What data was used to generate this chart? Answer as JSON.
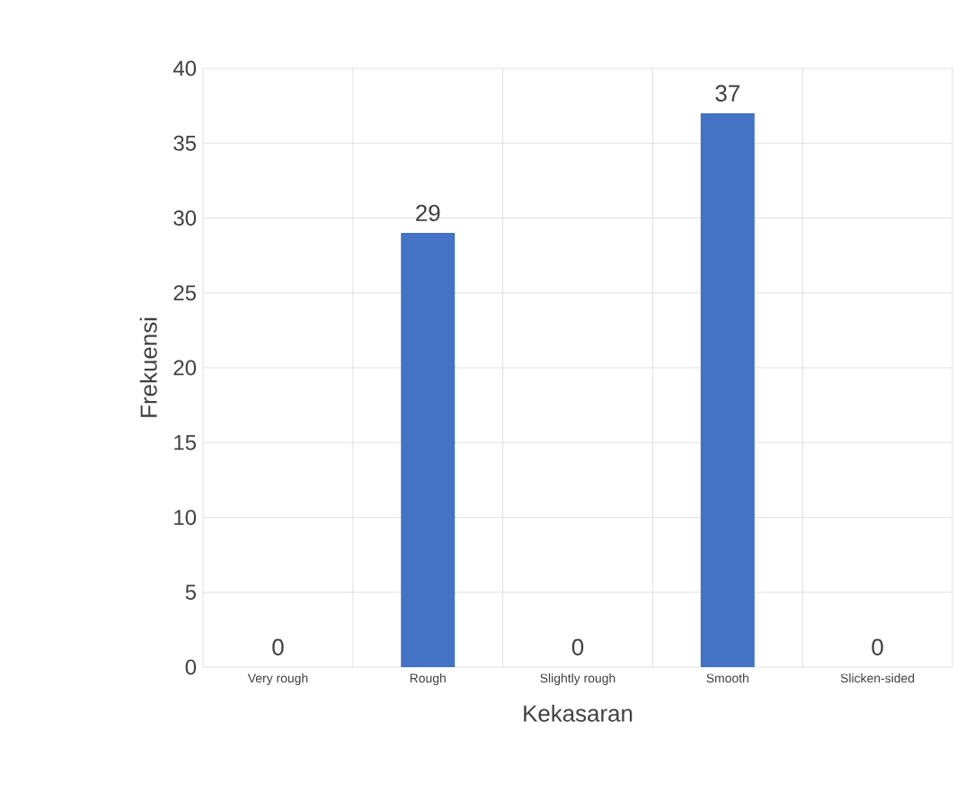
{
  "chart_data": {
    "type": "bar",
    "xlabel": "Kekasaran",
    "ylabel": "Frekuensi",
    "categories": [
      "Very rough",
      "Rough",
      "Slightly rough",
      "Smooth",
      "Slicken-sided"
    ],
    "values": [
      0,
      29,
      0,
      37,
      0
    ],
    "color": "#4472c4",
    "ylim": [
      0,
      40
    ],
    "yticks": [
      0,
      5,
      10,
      15,
      20,
      25,
      30,
      35,
      40
    ],
    "grid": true,
    "data_labels": true
  }
}
